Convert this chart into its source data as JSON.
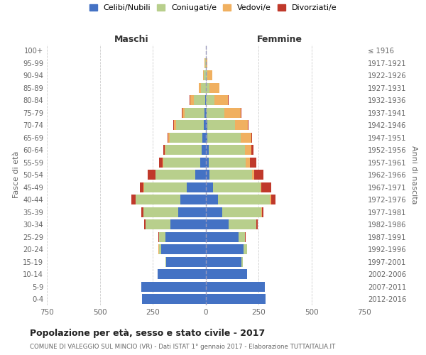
{
  "age_groups": [
    "0-4",
    "5-9",
    "10-14",
    "15-19",
    "20-24",
    "25-29",
    "30-34",
    "35-39",
    "40-44",
    "45-49",
    "50-54",
    "55-59",
    "60-64",
    "65-69",
    "70-74",
    "75-79",
    "80-84",
    "85-89",
    "90-94",
    "95-99",
    "100+"
  ],
  "birth_years": [
    "2012-2016",
    "2007-2011",
    "2002-2006",
    "1997-2001",
    "1992-1996",
    "1987-1991",
    "1982-1986",
    "1977-1981",
    "1972-1976",
    "1967-1971",
    "1962-1966",
    "1957-1961",
    "1952-1956",
    "1947-1951",
    "1942-1946",
    "1937-1941",
    "1932-1936",
    "1927-1931",
    "1922-1926",
    "1917-1921",
    "≤ 1916"
  ],
  "male_celibi": [
    300,
    305,
    225,
    185,
    210,
    190,
    165,
    130,
    120,
    90,
    50,
    25,
    20,
    15,
    10,
    5,
    2,
    0,
    0,
    0,
    0
  ],
  "male_coniugati": [
    0,
    0,
    0,
    3,
    10,
    30,
    120,
    165,
    210,
    200,
    185,
    175,
    170,
    155,
    130,
    95,
    55,
    22,
    8,
    2,
    0
  ],
  "male_vedovi": [
    0,
    0,
    0,
    0,
    2,
    0,
    0,
    0,
    2,
    2,
    2,
    3,
    3,
    5,
    8,
    10,
    15,
    10,
    5,
    2,
    0
  ],
  "male_divorziati": [
    0,
    0,
    0,
    0,
    0,
    2,
    5,
    10,
    20,
    20,
    35,
    18,
    8,
    5,
    5,
    3,
    2,
    0,
    0,
    0,
    0
  ],
  "fem_nubili": [
    285,
    280,
    195,
    170,
    180,
    155,
    110,
    80,
    60,
    35,
    20,
    15,
    15,
    10,
    8,
    5,
    2,
    2,
    2,
    0,
    0
  ],
  "fem_coniugate": [
    0,
    0,
    0,
    5,
    15,
    30,
    130,
    185,
    245,
    225,
    200,
    175,
    170,
    155,
    130,
    85,
    40,
    15,
    5,
    2,
    0
  ],
  "fem_vedove": [
    0,
    0,
    0,
    0,
    0,
    0,
    0,
    2,
    5,
    5,
    10,
    20,
    30,
    50,
    60,
    75,
    65,
    50,
    25,
    5,
    2
  ],
  "fem_divorziate": [
    0,
    0,
    0,
    0,
    0,
    5,
    8,
    8,
    20,
    45,
    45,
    30,
    10,
    5,
    5,
    3,
    3,
    0,
    0,
    0,
    0
  ],
  "color_celibi": "#4472c4",
  "color_coniugati": "#b8cf8c",
  "color_vedovi": "#f0b060",
  "color_divorziati": "#c0392b",
  "title": "Popolazione per età, sesso e stato civile - 2017",
  "subtitle": "COMUNE DI VALEGGIO SUL MINCIO (VR) - Dati ISTAT 1° gennaio 2017 - Elaborazione TUTTAITALIA.IT",
  "legend_labels": [
    "Celibi/Nubili",
    "Coniugati/e",
    "Vedovi/e",
    "Divorziati/e"
  ],
  "ylabel_left": "Fasce di età",
  "ylabel_right": "Anni di nascita",
  "maschi_label": "Maschi",
  "femmine_label": "Femmine",
  "xlim": 750
}
